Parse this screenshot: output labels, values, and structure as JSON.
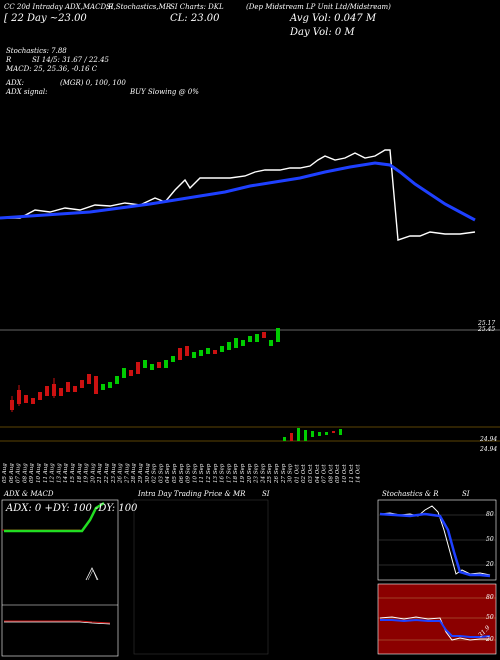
{
  "header": {
    "col1": "CC 20d Intraday ADX,MACD,R",
    "col2": "SI,Stochastics,MR",
    "col3": "SI Charts: DKL",
    "col4": "(Dep Midstream LP Unit Ltd/Midstream)",
    "price_line": "[ 22  Day ~23.00",
    "close_label": "CL: 23.00",
    "avg_vol": "Avg Vol: 0.047  M",
    "day_vol": "Day Vol: 0   M"
  },
  "indicators": {
    "stochastics": "Stochastics: 7.88",
    "si": "SI 14/5: 31.67 / 22.45",
    "r_label": "R",
    "macd": "MACD: 25, 25.36,  -0.16  C",
    "adx": "ADX:",
    "adx_vals": "(MGR) 0,  100,  100",
    "adx_signal": "ADX  signal:",
    "signal": "BUY Slowing @ 0%"
  },
  "price_labels": {
    "upper": "25.17",
    "upper2": "25.45"
  },
  "volume_labels": {
    "v1": "24.94",
    "v2": "24.94"
  },
  "x_axis": {
    "dates": [
      "05 Aug",
      "06 Aug",
      "07 Aug",
      "08 Aug",
      "09 Aug",
      "10 Aug",
      "11 Aug",
      "12 Aug",
      "13 Aug",
      "14 Aug",
      "15 Aug",
      "18 Aug",
      "19 Aug",
      "20 Aug",
      "21 Aug",
      "22 Aug",
      "23 Aug",
      "26 Aug",
      "27 Aug",
      "28 Aug",
      "29 Aug",
      "30 Aug",
      "02 Sep",
      "03 Sep",
      "04 Sep",
      "05 Sep",
      "06 Sep",
      "09 Sep",
      "10 Sep",
      "11 Sep",
      "12 Sep",
      "13 Sep",
      "16 Sep",
      "17 Sep",
      "18 Sep",
      "19 Sep",
      "20 Sep",
      "23 Sep",
      "24 Sep",
      "25 Sep",
      "26 Sep",
      "27 Sep",
      "30 Sep",
      "01 Oct",
      "02 Oct",
      "03 Oct",
      "04 Oct",
      "07 Oct",
      "08 Oct",
      "09 Oct",
      "10 Oct",
      "11 Oct",
      "14 Oct"
    ]
  },
  "bottom_panels": {
    "left_title": "ADX  & MACD",
    "left_values": "ADX: 0   +DY: 100   -DY: 100",
    "middle_title": "Intra  Day Trading Price  & MR",
    "middle_title_right": "SI",
    "right_title": "Stochastics & R",
    "right_title_right": "SI",
    "stoch_ticks": [
      "80",
      "50",
      "20"
    ],
    "rsi_ticks": [
      "80",
      "50",
      "20"
    ],
    "rsi_value": "31.9"
  },
  "colors": {
    "background": "#000000",
    "ma_line": "#1e40ff",
    "price_line": "#ffffff",
    "up_candle": "#00cc00",
    "down_candle": "#cc1111",
    "adx_green": "#22dd22",
    "rsi_panel": "#8b0000",
    "grid": "#b8860b"
  }
}
